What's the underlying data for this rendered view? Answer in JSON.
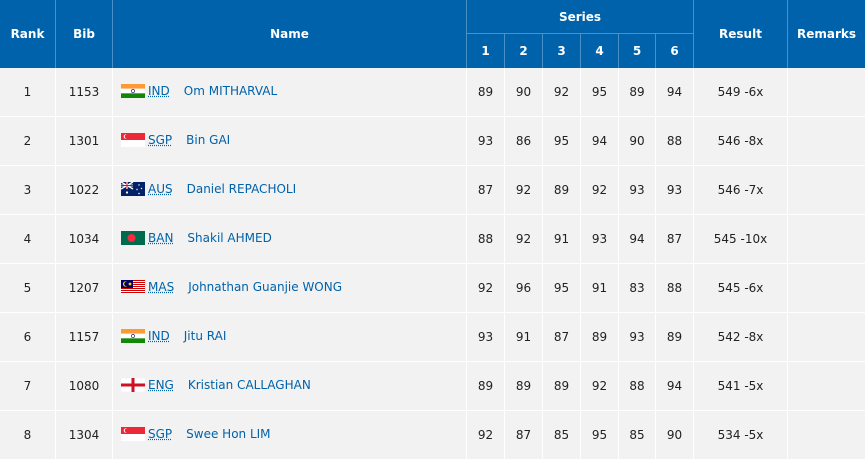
{
  "headers": {
    "rank": "Rank",
    "bib": "Bib",
    "name": "Name",
    "series": "Series",
    "series_nums": [
      "1",
      "2",
      "3",
      "4",
      "5",
      "6"
    ],
    "result": "Result",
    "remarks": "Remarks"
  },
  "rows": [
    {
      "rank": "1",
      "bib": "1153",
      "noc": "IND",
      "flag": "ind-flag-icon",
      "name": "Om MITHARVAL",
      "series": [
        "89",
        "90",
        "92",
        "95",
        "89",
        "94"
      ],
      "result": "549 -6x",
      "remarks": ""
    },
    {
      "rank": "2",
      "bib": "1301",
      "noc": "SGP",
      "flag": "sgp-flag-icon",
      "name": "Bin GAI",
      "series": [
        "93",
        "86",
        "95",
        "94",
        "90",
        "88"
      ],
      "result": "546 -8x",
      "remarks": ""
    },
    {
      "rank": "3",
      "bib": "1022",
      "noc": "AUS",
      "flag": "aus-flag-icon",
      "name": "Daniel REPACHOLI",
      "series": [
        "87",
        "92",
        "89",
        "92",
        "93",
        "93"
      ],
      "result": "546 -7x",
      "remarks": ""
    },
    {
      "rank": "4",
      "bib": "1034",
      "noc": "BAN",
      "flag": "ban-flag-icon",
      "name": "Shakil AHMED",
      "series": [
        "88",
        "92",
        "91",
        "93",
        "94",
        "87"
      ],
      "result": "545 -10x",
      "remarks": ""
    },
    {
      "rank": "5",
      "bib": "1207",
      "noc": "MAS",
      "flag": "mas-flag-icon",
      "name": "Johnathan Guanjie WONG",
      "series": [
        "92",
        "96",
        "95",
        "91",
        "83",
        "88"
      ],
      "result": "545 -6x",
      "remarks": ""
    },
    {
      "rank": "6",
      "bib": "1157",
      "noc": "IND",
      "flag": "ind-flag-icon",
      "name": "Jitu RAI",
      "series": [
        "93",
        "91",
        "87",
        "89",
        "93",
        "89"
      ],
      "result": "542 -8x",
      "remarks": ""
    },
    {
      "rank": "7",
      "bib": "1080",
      "noc": "ENG",
      "flag": "eng-flag-icon",
      "name": "Kristian CALLAGHAN",
      "series": [
        "89",
        "89",
        "89",
        "92",
        "88",
        "94"
      ],
      "result": "541 -5x",
      "remarks": ""
    },
    {
      "rank": "8",
      "bib": "1304",
      "noc": "SGP",
      "flag": "sgp-flag-icon",
      "name": "Swee Hon LIM",
      "series": [
        "92",
        "87",
        "85",
        "95",
        "85",
        "90"
      ],
      "result": "534 -5x",
      "remarks": ""
    }
  ],
  "colors": {
    "header_bg": "#0062aa",
    "row_bg": "#f2f2f2",
    "link": "#0062aa"
  }
}
